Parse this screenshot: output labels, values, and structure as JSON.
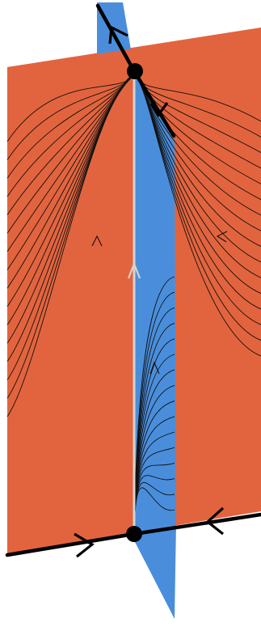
{
  "figure": {
    "colors": {
      "orange_plane": "#E2643E",
      "blue_plane": "#4A8EDB",
      "flow_line": "#111111",
      "axis_line": "#000000",
      "vertical_orbit": "#D7D2CE",
      "equilibrium": "#000000"
    },
    "upper_fan_count": 16,
    "lower_fan_count": 16
  }
}
